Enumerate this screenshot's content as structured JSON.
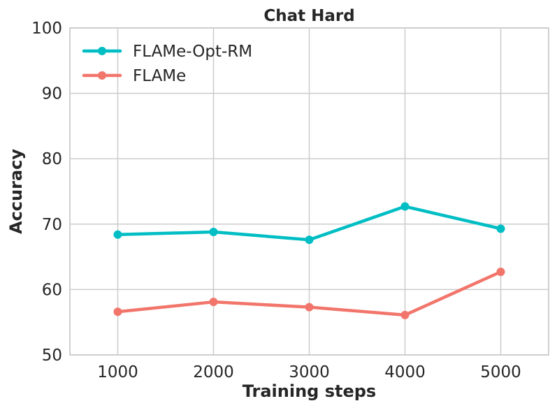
{
  "chart_data": {
    "type": "line",
    "title": "Chat Hard",
    "xlabel": "Training steps",
    "ylabel": "Accuracy",
    "x": [
      1000,
      2000,
      3000,
      4000,
      5000
    ],
    "xlim": [
      500,
      5500
    ],
    "ylim": [
      50,
      100
    ],
    "xticks": [
      1000,
      2000,
      3000,
      4000,
      5000
    ],
    "yticks": [
      50,
      60,
      70,
      80,
      90,
      100
    ],
    "grid": true,
    "legend_position": "top-left",
    "series": [
      {
        "name": "FLAMe-Opt-RM",
        "color": "#00bec4",
        "values": [
          68.4,
          68.8,
          67.6,
          72.7,
          69.3
        ]
      },
      {
        "name": "FLAMe",
        "color": "#f2756b",
        "values": [
          56.6,
          58.1,
          57.3,
          56.1,
          62.7
        ]
      }
    ]
  }
}
